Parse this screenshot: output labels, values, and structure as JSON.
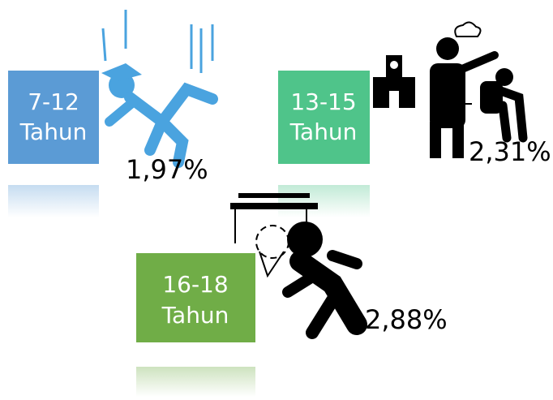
{
  "items": [
    {
      "range": "7-12",
      "unit": "Tahun",
      "percent": "1,97%"
    },
    {
      "range": "13-15",
      "unit": "Tahun",
      "percent": "2,31%"
    },
    {
      "range": "16-18",
      "unit": "Tahun",
      "percent": "2,88%"
    }
  ]
}
